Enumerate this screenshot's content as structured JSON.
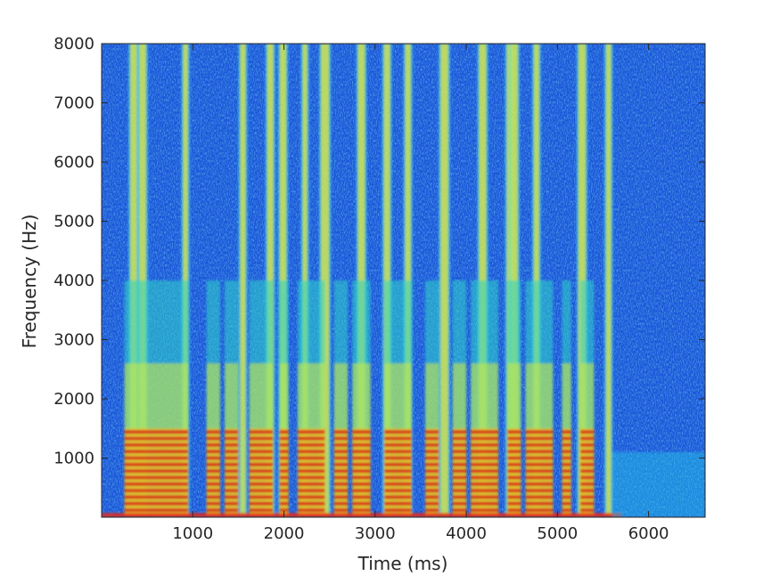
{
  "chart_data": {
    "type": "heatmap",
    "title": "",
    "xlabel": "Time (ms)",
    "ylabel": "Frequency (Hz)",
    "xlim": [
      0,
      6620
    ],
    "ylim": [
      0,
      8000
    ],
    "x_ticks": [
      1000,
      2000,
      3000,
      4000,
      5000,
      6000
    ],
    "x_tick_labels": [
      "1000",
      "2000",
      "3000",
      "4000",
      "5000",
      "6000"
    ],
    "y_ticks": [
      1000,
      2000,
      3000,
      4000,
      5000,
      6000,
      7000,
      8000
    ],
    "y_tick_labels": [
      "1000",
      "2000",
      "3000",
      "4000",
      "5000",
      "6000",
      "7000",
      "8000"
    ],
    "colormap": "jet",
    "grid": false,
    "colors": {
      "background": "#ffffff",
      "axis": "#262626"
    },
    "speech_segments_ms": [
      [
        250,
        950
      ],
      [
        1150,
        1300
      ],
      [
        1350,
        1500
      ],
      [
        1620,
        1880
      ],
      [
        1950,
        2050
      ],
      [
        2150,
        2450
      ],
      [
        2550,
        2700
      ],
      [
        2750,
        2950
      ],
      [
        3100,
        3400
      ],
      [
        3550,
        3700
      ],
      [
        3850,
        4000
      ],
      [
        4050,
        4350
      ],
      [
        4450,
        4600
      ],
      [
        4650,
        4950
      ],
      [
        5050,
        5150
      ],
      [
        5250,
        5400
      ]
    ],
    "broadband_bursts_ms": [
      350,
      450,
      920,
      1550,
      1850,
      1990,
      2230,
      2450,
      2850,
      3130,
      3360,
      3760,
      4180,
      4470,
      4530,
      4770,
      5270,
      5560
    ]
  }
}
